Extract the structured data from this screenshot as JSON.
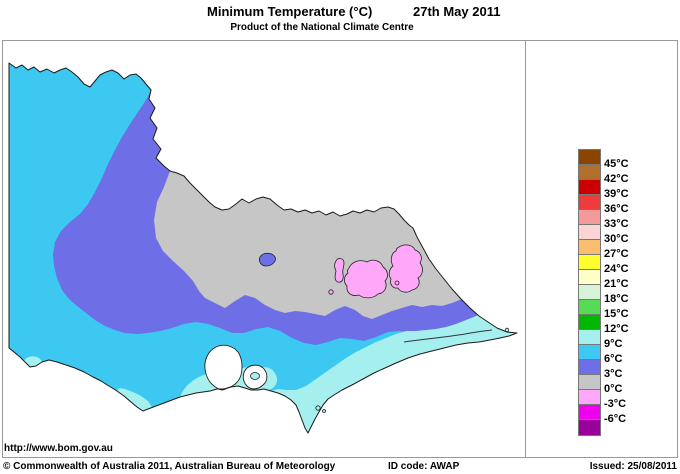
{
  "header": {
    "title": "Minimum Temperature (°C)",
    "date": "27th May 2011",
    "subtitle": "Product of the National Climate Centre"
  },
  "legend": {
    "labels": [
      "45°C",
      "42°C",
      "39°C",
      "36°C",
      "33°C",
      "30°C",
      "27°C",
      "24°C",
      "21°C",
      "18°C",
      "15°C",
      "12°C",
      "9°C",
      "6°C",
      "3°C",
      "0°C",
      "-3°C",
      "-6°C"
    ],
    "colors": [
      "#8B4500",
      "#B06F2B",
      "#CC0000",
      "#EE3B3B",
      "#F59A9A",
      "#FBD5D5",
      "#FBBE6E",
      "#FFFF2E",
      "#FFFFC8",
      "#D8F2D8",
      "#57DB57",
      "#00B800",
      "#A6EFEF",
      "#3CC8F0",
      "#6E6EE6",
      "#C6C6C6",
      "#FFA8FA",
      "#EE00EE",
      "#990099"
    ]
  },
  "map": {
    "sea": "#FFFFFF",
    "outline": "#1a1a1a",
    "frame": "#999999"
  },
  "footer": {
    "url": "http://www.bom.gov.au",
    "copyright": "© Commonwealth of Australia 2011, Australian Bureau of Meteorology",
    "id_code": "ID code: AWAP",
    "issued": "Issued: 25/08/2011"
  }
}
